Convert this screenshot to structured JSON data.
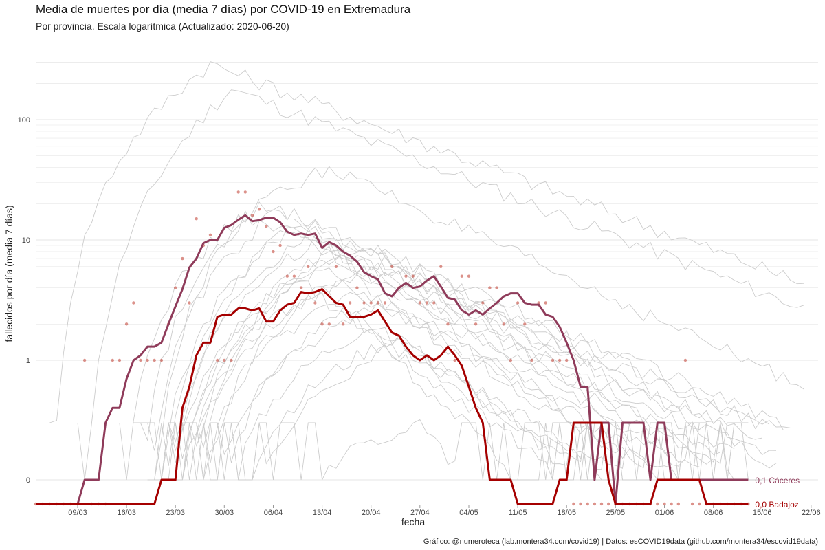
{
  "header": {
    "title": "Media de muertes por día (media 7 días) por COVID-19 en Extremadura",
    "subtitle": "Por provincia. Escala logarítmica  (Actualizado: 2020-06-20)"
  },
  "footer": {
    "caption": "Gráfico: @numeroteca (lab.montera34.com/covid19) | Datos: esCOVID19data (github.com/montera34/escovid19data)"
  },
  "colors": {
    "caceres": "#8f3b5a",
    "badajoz": "#a50000",
    "points": "#c0392b",
    "background_lines": "#cccccc",
    "grid": "#e6e6e6"
  },
  "chart_data": {
    "type": "line",
    "scale": "log",
    "xlabel": "fecha",
    "ylabel": "fallecidos por día (media 7 días)",
    "x_range": [
      "2020-03-03",
      "2020-06-23"
    ],
    "y_ticks": [
      0,
      1,
      10,
      100
    ],
    "y_tick_labels": [
      "0",
      "1",
      "10",
      "100"
    ],
    "x_tick_labels": [
      "09/03",
      "16/03",
      "23/03",
      "30/03",
      "06/04",
      "13/04",
      "20/04",
      "27/04",
      "04/05",
      "11/05",
      "18/05",
      "25/05",
      "01/06",
      "08/06",
      "15/06",
      "22/06"
    ],
    "x_ticks": [
      "2020-03-09",
      "2020-03-16",
      "2020-03-23",
      "2020-03-30",
      "2020-04-06",
      "2020-04-13",
      "2020-04-20",
      "2020-04-27",
      "2020-05-04",
      "2020-05-11",
      "2020-05-18",
      "2020-05-25",
      "2020-06-01",
      "2020-06-08",
      "2020-06-15",
      "2020-06-22"
    ],
    "grid": true,
    "legend": "direct labels at line ends",
    "series": [
      {
        "name": "Cáceres",
        "end_label": "0,1 Cáceres",
        "start_date": "2020-03-03",
        "values": [
          0,
          0,
          0,
          0,
          0,
          0,
          0,
          0.1,
          0.1,
          0.1,
          0.3,
          0.4,
          0.4,
          0.7,
          1.0,
          1.1,
          1.3,
          1.3,
          1.4,
          2.0,
          2.8,
          3.9,
          5.9,
          7.0,
          9.4,
          10.0,
          10.0,
          12.6,
          13.3,
          14.7,
          16.0,
          14.3,
          14.6,
          15.3,
          15.3,
          14.0,
          11.7,
          11.0,
          11.3,
          11.0,
          11.3,
          8.6,
          9.6,
          9.0,
          8.0,
          7.4,
          6.6,
          5.4,
          5.0,
          4.7,
          3.6,
          3.4,
          4.0,
          4.4,
          4.0,
          4.1,
          4.6,
          5.0,
          4.1,
          3.3,
          3.2,
          2.6,
          2.4,
          2.6,
          2.4,
          2.7,
          3.0,
          3.4,
          3.6,
          3.6,
          3.0,
          2.9,
          2.9,
          2.4,
          2.3,
          1.9,
          1.4,
          1.0,
          0.6,
          0.6,
          0.1,
          0.3,
          0.3,
          0.0,
          0.3,
          0.3,
          0.3,
          0.3,
          0.1,
          0.3,
          0.3,
          0.1,
          0.1,
          0.1,
          0.1,
          0.1,
          0.1,
          0.1,
          0.1,
          0.1,
          0.1,
          0.1,
          0.1
        ]
      },
      {
        "name": "Badajoz",
        "end_label": "0,0 Badajoz",
        "start_date": "2020-03-03",
        "values": [
          0,
          0,
          0,
          0,
          0,
          0,
          0,
          0,
          0,
          0,
          0,
          0,
          0,
          0,
          0,
          0,
          0,
          0,
          0.1,
          0.1,
          0.1,
          0.4,
          0.6,
          1.1,
          1.4,
          1.4,
          2.3,
          2.4,
          2.4,
          2.7,
          2.7,
          2.6,
          2.7,
          2.1,
          2.1,
          2.6,
          2.9,
          3.0,
          3.7,
          3.6,
          3.7,
          3.9,
          3.4,
          3.0,
          2.9,
          2.3,
          2.3,
          2.3,
          2.4,
          2.6,
          2.1,
          1.7,
          1.6,
          1.3,
          1.1,
          1.0,
          1.1,
          1.0,
          1.1,
          1.3,
          1.1,
          0.9,
          0.6,
          0.4,
          0.3,
          0.1,
          0.1,
          0.1,
          0.1,
          0.0,
          0.0,
          0.0,
          0.0,
          0.0,
          0.0,
          0.1,
          0.1,
          0.3,
          0.3,
          0.3,
          0.3,
          0.3,
          0.1,
          0.0,
          0.0,
          0.0,
          0.0,
          0.0,
          0.0,
          0.1,
          0.1,
          0.1,
          0.1,
          0.1,
          0.1,
          0.1,
          0.0,
          0.0,
          0.0,
          0.0,
          0.0,
          0.0,
          0.0
        ]
      }
    ],
    "points": {
      "start_date": "2020-03-03",
      "daily_values": [
        0,
        0,
        0,
        0,
        0,
        0,
        0,
        1,
        0,
        0,
        0,
        1,
        1,
        2,
        3,
        1,
        1,
        1,
        1,
        2,
        4,
        7,
        3,
        15,
        9,
        11,
        1,
        1,
        1,
        25,
        25,
        16,
        18,
        13,
        8,
        9,
        5,
        5,
        4,
        6,
        3,
        2,
        2,
        6,
        2,
        3,
        4,
        3,
        3,
        3,
        3,
        6,
        4,
        5,
        5,
        3,
        3,
        3,
        6,
        2,
        1,
        5,
        5,
        2,
        3,
        4,
        4,
        2,
        1,
        3,
        2,
        1,
        3,
        3,
        1,
        1,
        1,
        0,
        0,
        0,
        0,
        0,
        0,
        0,
        0,
        0,
        0,
        0,
        0,
        0,
        0,
        0,
        0,
        1,
        0,
        0,
        0,
        0,
        0,
        0,
        0,
        0,
        0
      ]
    }
  }
}
